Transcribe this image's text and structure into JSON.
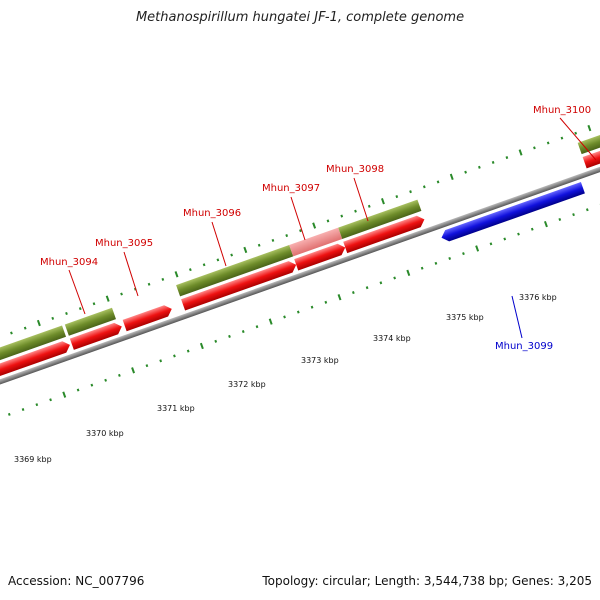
{
  "title": "Methanospirillum hungatei JF-1, complete genome",
  "footer": {
    "accession": "Accession: NC_007796",
    "summary": "Topology: circular; Length: 3,544,738 bp; Genes: 3,205"
  },
  "colors": {
    "forward_gene": "#ee1111",
    "reverse_gene": "#1111dd",
    "cds_bar": "#6e8c2a",
    "highlight": "#ee8080",
    "backbone": "#888888",
    "tick": "#2a8a2a",
    "label_red": "#d00000",
    "label_blue": "#0000cc"
  },
  "gene_labels": [
    {
      "name": "Mhun_3094",
      "strand": "forward"
    },
    {
      "name": "Mhun_3095",
      "strand": "forward"
    },
    {
      "name": "Mhun_3096",
      "strand": "forward"
    },
    {
      "name": "Mhun_3097",
      "strand": "forward"
    },
    {
      "name": "Mhun_3098",
      "strand": "forward"
    },
    {
      "name": "Mhun_3099",
      "strand": "reverse"
    },
    {
      "name": "Mhun_3100",
      "strand": "forward"
    }
  ],
  "kbp_labels": [
    "3369 kbp",
    "3370 kbp",
    "3371 kbp",
    "3372 kbp",
    "3373 kbp",
    "3374 kbp",
    "3375 kbp",
    "3376 kbp"
  ]
}
